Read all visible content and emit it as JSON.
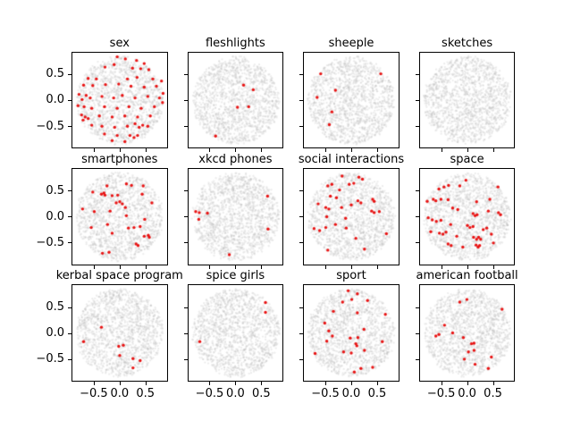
{
  "figure": {
    "background": "#ffffff",
    "kind": "matplotlib-style grid of scatter subplots",
    "grid_rows": 3,
    "grid_cols": 4
  },
  "colors": {
    "highlight_point": "#e81212",
    "background_cloud": "#e9e9e9",
    "axes_edge": "#000000",
    "text": "#000000"
  },
  "axes": {
    "xlim": [
      -0.93,
      0.93
    ],
    "ylim": [
      -0.93,
      0.93
    ],
    "x_ticks": [
      -0.5,
      0.0,
      0.5
    ],
    "y_ticks": [
      0.5,
      0.0,
      -0.5
    ],
    "x_tick_labels": [
      "−0.5",
      "0.0",
      "0.5"
    ],
    "y_tick_labels": [
      "0.5",
      "0.0",
      "−0.5"
    ],
    "grid": false,
    "x_labels_shown_on": "bottom row only",
    "y_labels_shown_on": "left column only"
  },
  "chart_data": {
    "type": "scatter",
    "legend": "none",
    "background_cloud": {
      "shape": "disk of many tiny light-gray points",
      "radius": 0.85,
      "approx_points": 1500,
      "color": "#e9e9e9"
    },
    "subplots": [
      {
        "title": "sex",
        "points": [
          [
            -0.05,
            0.85
          ],
          [
            0.11,
            0.81
          ],
          [
            0.33,
            0.78
          ],
          [
            0.48,
            0.72
          ],
          [
            -0.11,
            0.7
          ],
          [
            -0.29,
            0.65
          ],
          [
            0.25,
            0.63
          ],
          [
            0.41,
            0.62
          ],
          [
            0.57,
            0.6
          ],
          [
            -0.62,
            0.43
          ],
          [
            -0.46,
            0.42
          ],
          [
            0.15,
            0.42
          ],
          [
            0.34,
            0.45
          ],
          [
            0.65,
            0.42
          ],
          [
            0.82,
            0.38
          ],
          [
            -0.71,
            0.3
          ],
          [
            -0.53,
            0.29
          ],
          [
            -0.28,
            0.31
          ],
          [
            -0.02,
            0.32
          ],
          [
            0.22,
            0.28
          ],
          [
            0.48,
            0.26
          ],
          [
            0.72,
            0.28
          ],
          [
            -0.8,
            0.12
          ],
          [
            -0.66,
            0.1
          ],
          [
            -0.74,
            0.02
          ],
          [
            -0.58,
            0.05
          ],
          [
            -0.35,
            0.08
          ],
          [
            -0.12,
            0.05
          ],
          [
            0.05,
            0.1
          ],
          [
            0.3,
            0.05
          ],
          [
            0.55,
            0.08
          ],
          [
            0.78,
            0.05
          ],
          [
            0.85,
            0.14
          ],
          [
            -0.82,
            -0.1
          ],
          [
            -0.7,
            -0.12
          ],
          [
            -0.55,
            -0.15
          ],
          [
            -0.3,
            -0.12
          ],
          [
            -0.05,
            -0.15
          ],
          [
            0.18,
            -0.12
          ],
          [
            0.42,
            -0.15
          ],
          [
            0.68,
            -0.12
          ],
          [
            0.84,
            -0.04
          ],
          [
            -0.75,
            -0.28
          ],
          [
            -0.68,
            -0.32
          ],
          [
            -0.72,
            -0.38
          ],
          [
            -0.62,
            -0.35
          ],
          [
            -0.4,
            -0.3
          ],
          [
            -0.15,
            -0.32
          ],
          [
            0.1,
            -0.3
          ],
          [
            0.35,
            -0.32
          ],
          [
            0.6,
            -0.3
          ],
          [
            -0.55,
            -0.48
          ],
          [
            -0.35,
            -0.5
          ],
          [
            -0.1,
            -0.52
          ],
          [
            0.15,
            -0.5
          ],
          [
            0.3,
            -0.45
          ],
          [
            0.38,
            -0.52
          ],
          [
            0.45,
            -0.48
          ],
          [
            0.55,
            -0.5
          ],
          [
            -0.3,
            -0.65
          ],
          [
            -0.05,
            -0.68
          ],
          [
            0.2,
            -0.68
          ],
          [
            0.28,
            -0.72
          ],
          [
            0.35,
            -0.68
          ],
          [
            0.1,
            -0.8
          ],
          [
            -0.15,
            -0.78
          ]
        ]
      },
      {
        "title": "fleshlights",
        "points": [
          [
            0.15,
            0.3
          ],
          [
            0.34,
            0.21
          ],
          [
            0.03,
            -0.13
          ],
          [
            0.25,
            -0.12
          ],
          [
            -0.4,
            -0.69
          ]
        ]
      },
      {
        "title": "sheeple",
        "points": [
          [
            -0.6,
            0.52
          ],
          [
            0.58,
            0.52
          ],
          [
            -0.31,
            0.2
          ],
          [
            -0.67,
            0.06
          ],
          [
            -0.38,
            -0.22
          ],
          [
            -0.43,
            -0.47
          ]
        ]
      },
      {
        "title": "sketches",
        "points": []
      },
      {
        "title": "smartphones",
        "points": [
          [
            -0.25,
            0.6
          ],
          [
            0.13,
            0.64
          ],
          [
            0.23,
            0.61
          ],
          [
            0.46,
            0.6
          ],
          [
            -0.53,
            0.48
          ],
          [
            -0.36,
            0.44
          ],
          [
            -0.31,
            0.46
          ],
          [
            -0.29,
            0.42
          ],
          [
            -0.15,
            0.41
          ],
          [
            -0.04,
            0.42
          ],
          [
            0.44,
            0.44
          ],
          [
            -0.07,
            0.27
          ],
          [
            0.0,
            0.29
          ],
          [
            0.05,
            0.25
          ],
          [
            0.63,
            0.27
          ],
          [
            0.11,
            0.18
          ],
          [
            -0.73,
            0.15
          ],
          [
            -0.5,
            0.1
          ],
          [
            -0.19,
            0.11
          ],
          [
            0.13,
            0.02
          ],
          [
            0.49,
            -0.05
          ],
          [
            -0.56,
            -0.21
          ],
          [
            -0.24,
            -0.15
          ],
          [
            0.17,
            -0.22
          ],
          [
            0.28,
            -0.21
          ],
          [
            0.4,
            -0.19
          ],
          [
            -0.15,
            -0.32
          ],
          [
            0.48,
            -0.38
          ],
          [
            0.56,
            -0.36
          ],
          [
            0.58,
            -0.4
          ],
          [
            0.32,
            -0.53
          ],
          [
            0.36,
            -0.56
          ],
          [
            -0.34,
            -0.71
          ],
          [
            -0.21,
            -0.69
          ]
        ]
      },
      {
        "title": "xkcd phones",
        "points": [
          [
            0.62,
            0.4
          ],
          [
            -0.79,
            0.1
          ],
          [
            -0.72,
            0.08
          ],
          [
            -0.56,
            0.07
          ],
          [
            -0.73,
            -0.05
          ],
          [
            0.63,
            -0.24
          ],
          [
            -0.13,
            -0.74
          ]
        ]
      },
      {
        "title": "social interactions",
        "points": [
          [
            -0.18,
            0.79
          ],
          [
            0.15,
            0.77
          ],
          [
            0.22,
            0.73
          ],
          [
            -0.46,
            0.6
          ],
          [
            -0.38,
            0.63
          ],
          [
            -0.04,
            0.63
          ],
          [
            0.05,
            0.65
          ],
          [
            -0.23,
            0.52
          ],
          [
            -0.41,
            0.4
          ],
          [
            -0.29,
            0.37
          ],
          [
            0.13,
            0.31
          ],
          [
            0.19,
            0.27
          ],
          [
            0.42,
            0.34
          ],
          [
            0.45,
            0.3
          ],
          [
            -0.65,
            0.25
          ],
          [
            -0.5,
            0.18
          ],
          [
            -0.44,
            0.15
          ],
          [
            -0.19,
            0.18
          ],
          [
            0.0,
            0.23
          ],
          [
            0.4,
            0.11
          ],
          [
            0.45,
            0.08
          ],
          [
            0.55,
            0.1
          ],
          [
            -0.48,
            0.0
          ],
          [
            -0.11,
            -0.03
          ],
          [
            -0.73,
            -0.23
          ],
          [
            -0.62,
            -0.27
          ],
          [
            -0.5,
            -0.21
          ],
          [
            -0.31,
            -0.15
          ],
          [
            -0.1,
            -0.22
          ],
          [
            0.09,
            -0.42
          ],
          [
            0.26,
            -0.63
          ],
          [
            -0.46,
            -0.65
          ],
          [
            0.69,
            -0.33
          ]
        ]
      },
      {
        "title": "space",
        "points": [
          [
            -0.03,
            0.71
          ],
          [
            -0.46,
            0.58
          ],
          [
            -0.37,
            0.61
          ],
          [
            -0.15,
            0.6
          ],
          [
            -0.56,
            0.54
          ],
          [
            0.6,
            0.58
          ],
          [
            -0.79,
            0.3
          ],
          [
            -0.67,
            0.34
          ],
          [
            -0.62,
            0.31
          ],
          [
            -0.52,
            0.34
          ],
          [
            -0.38,
            0.33
          ],
          [
            0.18,
            0.29
          ],
          [
            0.44,
            0.34
          ],
          [
            -0.29,
            0.17
          ],
          [
            -0.19,
            0.14
          ],
          [
            0.11,
            0.06
          ],
          [
            0.15,
            0.02
          ],
          [
            0.19,
            0.04
          ],
          [
            0.61,
            0.08
          ],
          [
            0.65,
            0.04
          ],
          [
            0.41,
            0.11
          ],
          [
            -0.77,
            -0.02
          ],
          [
            -0.69,
            -0.06
          ],
          [
            -0.61,
            -0.09
          ],
          [
            -0.52,
            -0.07
          ],
          [
            -0.33,
            -0.15
          ],
          [
            0.0,
            -0.17
          ],
          [
            0.05,
            -0.21
          ],
          [
            0.11,
            -0.19
          ],
          [
            0.31,
            -0.25
          ],
          [
            0.38,
            -0.22
          ],
          [
            -0.72,
            -0.29
          ],
          [
            -0.55,
            -0.32
          ],
          [
            -0.48,
            -0.34
          ],
          [
            -0.42,
            -0.3
          ],
          [
            -0.21,
            -0.38
          ],
          [
            0.12,
            -0.4
          ],
          [
            0.18,
            -0.44
          ],
          [
            0.22,
            -0.4
          ],
          [
            0.26,
            -0.44
          ],
          [
            0.47,
            -0.34
          ],
          [
            -0.38,
            -0.53
          ],
          [
            -0.32,
            -0.56
          ],
          [
            -0.09,
            -0.59
          ],
          [
            0.17,
            -0.55
          ],
          [
            0.21,
            -0.59
          ],
          [
            0.24,
            -0.56
          ],
          [
            0.51,
            -0.51
          ]
        ]
      },
      {
        "title": "kerbal space program",
        "points": [
          [
            -0.36,
            0.11
          ],
          [
            -0.71,
            -0.17
          ],
          [
            -0.02,
            -0.26
          ],
          [
            0.07,
            -0.24
          ],
          [
            0.0,
            -0.44
          ],
          [
            0.26,
            -0.5
          ],
          [
            0.4,
            -0.54
          ],
          [
            0.26,
            -0.68
          ]
        ]
      },
      {
        "title": "spice girls",
        "points": [
          [
            0.58,
            0.59
          ],
          [
            0.58,
            0.4
          ],
          [
            -0.71,
            -0.17
          ]
        ]
      },
      {
        "title": "sport",
        "points": [
          [
            -0.06,
            0.82
          ],
          [
            0.12,
            0.76
          ],
          [
            -0.17,
            0.6
          ],
          [
            0.01,
            0.65
          ],
          [
            0.32,
            0.63
          ],
          [
            -0.35,
            0.42
          ],
          [
            0.12,
            0.39
          ],
          [
            0.67,
            0.36
          ],
          [
            -0.52,
            0.19
          ],
          [
            -0.44,
            0.04
          ],
          [
            0.25,
            0.07
          ],
          [
            -0.37,
            -0.06
          ],
          [
            -0.48,
            -0.16
          ],
          [
            -0.02,
            -0.1
          ],
          [
            0.13,
            -0.09
          ],
          [
            0.09,
            -0.21
          ],
          [
            0.11,
            -0.25
          ],
          [
            0.61,
            -0.17
          ],
          [
            -0.71,
            -0.4
          ],
          [
            -0.15,
            -0.37
          ],
          [
            0.0,
            -0.39
          ],
          [
            0.26,
            -0.34
          ],
          [
            0.19,
            -0.69
          ],
          [
            0.42,
            -0.67
          ],
          [
            0.06,
            -0.76
          ]
        ]
      },
      {
        "title": "american football",
        "points": [
          [
            -0.15,
            0.6
          ],
          [
            -0.01,
            0.65
          ],
          [
            0.68,
            0.46
          ],
          [
            -0.45,
            0.15
          ],
          [
            -0.29,
            0.0
          ],
          [
            -0.62,
            -0.06
          ],
          [
            -0.56,
            -0.03
          ],
          [
            -0.08,
            -0.09
          ],
          [
            0.08,
            -0.21
          ],
          [
            0.13,
            -0.2
          ],
          [
            0.13,
            -0.34
          ],
          [
            0.02,
            -0.37
          ],
          [
            -0.06,
            -0.51
          ],
          [
            0.47,
            -0.47
          ],
          [
            0.15,
            -0.61
          ],
          [
            0.41,
            -0.69
          ]
        ]
      }
    ]
  }
}
